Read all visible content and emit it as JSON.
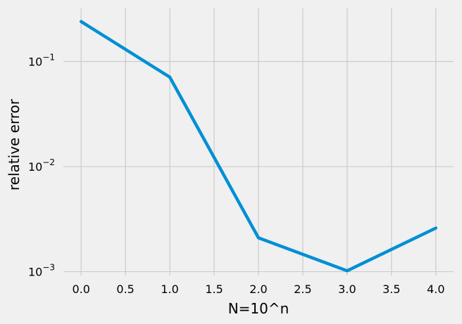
{
  "chart_data": {
    "type": "line",
    "title": "",
    "xlabel": "N=10^n",
    "ylabel": "relative error",
    "yscale": "log",
    "xlim": [
      -0.2,
      4.2
    ],
    "ylim": [
      0.00092,
      0.32
    ],
    "grid": true,
    "x_ticks": [
      0.0,
      0.5,
      1.0,
      1.5,
      2.0,
      2.5,
      3.0,
      3.5,
      4.0
    ],
    "x_tick_labels": [
      "0.0",
      "0.5",
      "1.0",
      "1.5",
      "2.0",
      "2.5",
      "3.0",
      "3.5",
      "4.0"
    ],
    "y_ticks": [
      0.001,
      0.01,
      0.1
    ],
    "y_tick_labels": [
      {
        "base": "10",
        "exp": "−3"
      },
      {
        "base": "10",
        "exp": "−2"
      },
      {
        "base": "10",
        "exp": "−1"
      }
    ],
    "series": [
      {
        "color": "#008fd5",
        "x": [
          0,
          1,
          2,
          3,
          4
        ],
        "y": [
          0.24,
          0.071,
          0.0021,
          0.00102,
          0.0026
        ]
      }
    ]
  }
}
